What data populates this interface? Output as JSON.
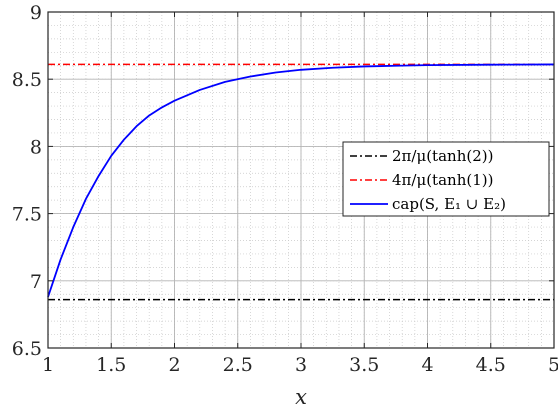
{
  "chart_data": {
    "type": "line",
    "title": "",
    "xlabel": "x",
    "ylabel": "",
    "xlim": [
      1,
      5
    ],
    "ylim": [
      6.5,
      9
    ],
    "x_ticks": [
      "1",
      "1.5",
      "2",
      "2.5",
      "3",
      "3.5",
      "4",
      "4.5",
      "5"
    ],
    "y_ticks": [
      "6.5",
      "7",
      "7.5",
      "8",
      "8.5",
      "9"
    ],
    "grid": true,
    "minor_grid": true,
    "legend_position": "center-right",
    "series": [
      {
        "name": "2π/μ(tanh(2))",
        "color": "#000000",
        "style": "dash-dot",
        "x": [
          1,
          5
        ],
        "y": [
          6.86,
          6.86
        ]
      },
      {
        "name": "4π/μ(tanh(1))",
        "color": "#ff0000",
        "style": "dash-dot",
        "x": [
          1,
          5
        ],
        "y": [
          8.61,
          8.61
        ]
      },
      {
        "name": "cap(S, E₁ ∪ E₂)",
        "color": "#0000ff",
        "style": "solid",
        "x": [
          1,
          1.1,
          1.2,
          1.3,
          1.4,
          1.5,
          1.6,
          1.7,
          1.8,
          1.9,
          2,
          2.2,
          2.4,
          2.6,
          2.8,
          3,
          3.25,
          3.5,
          3.75,
          4,
          4.5,
          5
        ],
        "y": [
          6.88,
          7.16,
          7.4,
          7.61,
          7.78,
          7.93,
          8.05,
          8.15,
          8.23,
          8.29,
          8.34,
          8.42,
          8.48,
          8.52,
          8.55,
          8.57,
          8.585,
          8.595,
          8.6,
          8.605,
          8.608,
          8.61
        ]
      }
    ]
  }
}
